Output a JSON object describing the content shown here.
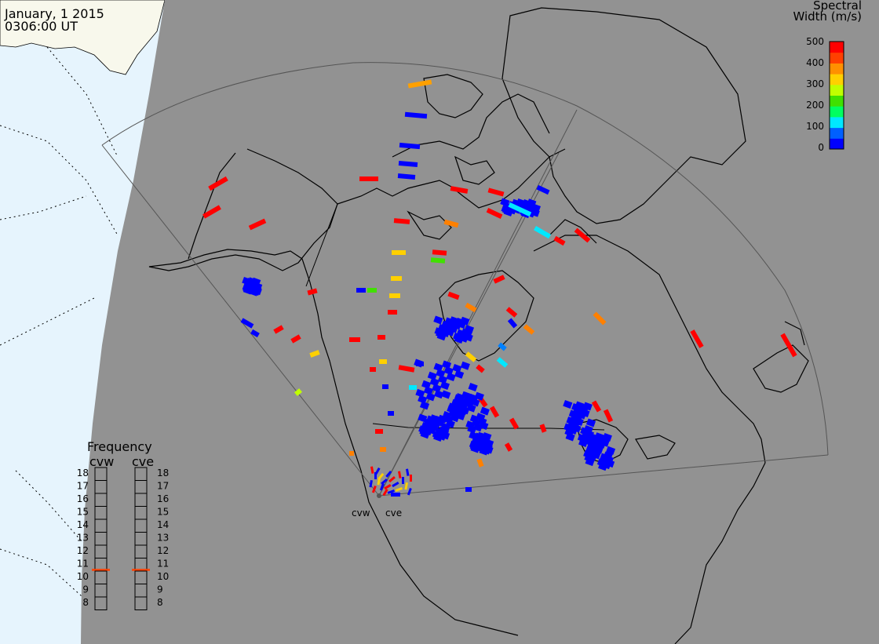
{
  "title": {
    "date": "January, 1 2015",
    "time": "0306:00 UT"
  },
  "colors": {
    "background_gray": "#929292",
    "ocean": "#e6f4fd",
    "land_outside": "#f8f8ec",
    "coast": "#000000",
    "fov": "#555555"
  },
  "colorbar": {
    "title_line1": "Spectral",
    "title_line2": "Width (m/s)",
    "ticks": [
      "500",
      "400",
      "300",
      "200",
      "100",
      "0"
    ],
    "scale": [
      "#0000ff",
      "#0060ff",
      "#00e8ff",
      "#00ff60",
      "#40e000",
      "#c0ff00",
      "#ffd000",
      "#ff9000",
      "#ff4000",
      "#ff0000"
    ]
  },
  "frequency": {
    "title": "Frequency",
    "radars": [
      "cvw",
      "cve"
    ],
    "levels": [
      "18",
      "17",
      "16",
      "15",
      "14",
      "13",
      "12",
      "11",
      "10",
      "9",
      "8"
    ],
    "current_level": 11,
    "indicator_color": "#ff4000"
  },
  "radar_labels": [
    "cvw",
    "cve"
  ]
}
